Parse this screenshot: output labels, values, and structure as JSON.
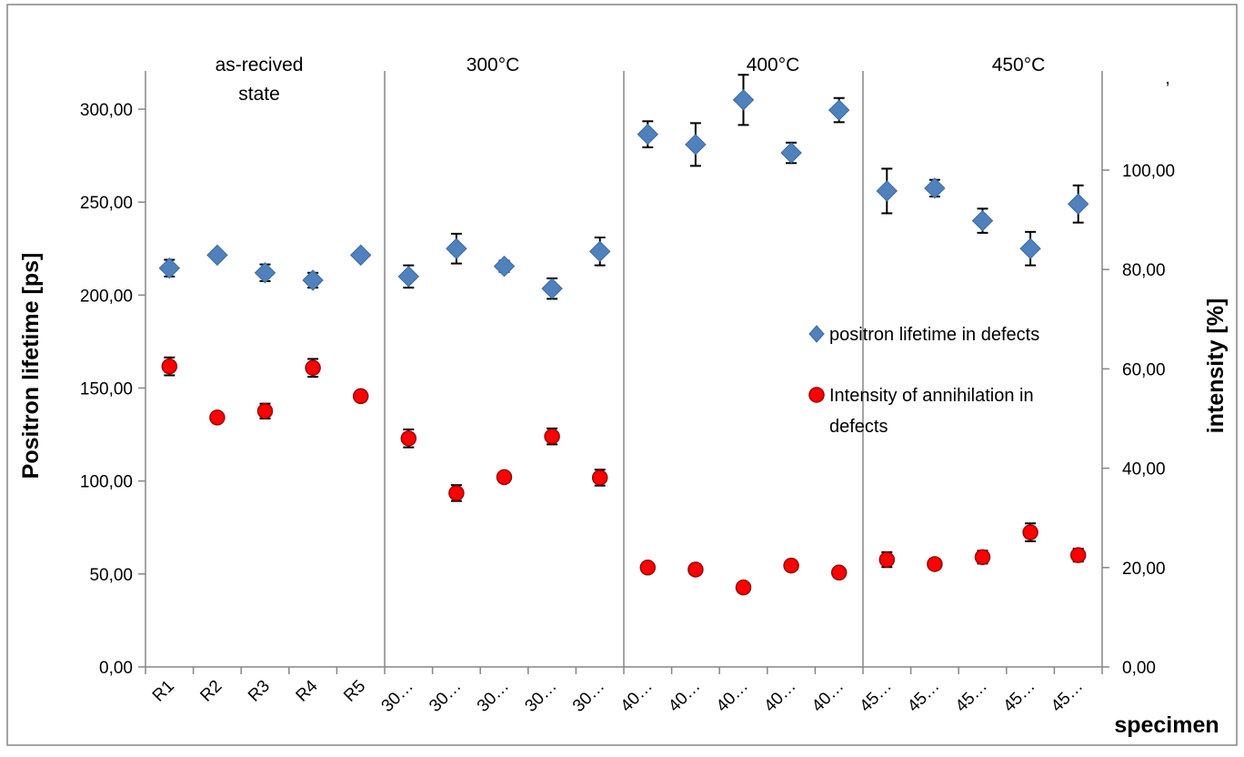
{
  "chart_data": {
    "type": "scatter",
    "title": "",
    "xlabel": "specimen",
    "ylabel": "Positron lifetime [ps]",
    "y2label": "intensity [%]",
    "corner_mark": ",",
    "categories": [
      "R1",
      "R2",
      "R3",
      "R4",
      "R5",
      "30…",
      "30…",
      "30…",
      "30…",
      "30…",
      "40…",
      "40…",
      "40…",
      "40…",
      "40…",
      "45…",
      "45…",
      "45…",
      "45…",
      "45…"
    ],
    "ylim": [
      0,
      300
    ],
    "y_ticks": [
      "0,00",
      "50,00",
      "100,00",
      "150,00",
      "200,00",
      "250,00",
      "300,00"
    ],
    "y2lim": [
      0,
      115
    ],
    "y2_ticks": [
      "0,00",
      "20,00",
      "40,00",
      "60,00",
      "80,00",
      "100,00"
    ],
    "groups": [
      {
        "label_lines": [
          "as-recived",
          "state"
        ]
      },
      {
        "label_lines": [
          "300°C"
        ]
      },
      {
        "label_lines": [
          "400°C"
        ]
      },
      {
        "label_lines": [
          "450°C"
        ]
      }
    ],
    "series": [
      {
        "name": "positron lifetime in defects",
        "axis": "left",
        "marker": "diamond",
        "color": "#4f81bd",
        "values": [
          214.5,
          221.5,
          212.0,
          208.0,
          221.5,
          210.0,
          225.0,
          215.5,
          203.5,
          223.5,
          286.5,
          281.0,
          305.0,
          276.5,
          299.5,
          256.0,
          257.5,
          240.0,
          225.0,
          249.0
        ],
        "errors": [
          4.5,
          2.0,
          4.5,
          4.0,
          2.0,
          6.0,
          8.0,
          3.0,
          5.5,
          7.5,
          7.0,
          11.5,
          13.5,
          5.5,
          6.5,
          12.0,
          4.5,
          6.5,
          9.0,
          10.0
        ]
      },
      {
        "name": "Intensity of annihilation in defects",
        "axis": "right",
        "marker": "circle",
        "color": "#ff0000",
        "values": [
          60.5,
          50.2,
          51.5,
          60.2,
          54.5,
          46.0,
          35.0,
          38.2,
          46.4,
          38.1,
          20.0,
          19.6,
          16.0,
          20.4,
          19.0,
          21.6,
          20.7,
          22.1,
          27.1,
          22.5
        ],
        "errors": [
          1.8,
          0.5,
          1.5,
          1.8,
          0.5,
          1.8,
          1.6,
          0.5,
          1.6,
          1.6,
          0.5,
          1.0,
          0.5,
          0.5,
          0.5,
          1.5,
          0.5,
          1.3,
          1.8,
          1.3
        ]
      }
    ],
    "legend_placement": "right-center",
    "grid": false
  }
}
